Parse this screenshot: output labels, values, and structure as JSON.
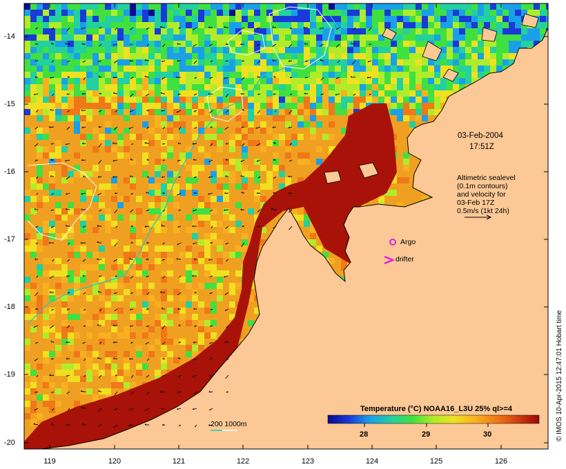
{
  "title_stamp": {
    "date": "03-Feb-2004",
    "time": "17:51Z"
  },
  "altimetry_note": {
    "line1": "Altimetric sealevel",
    "line2": "(0.1m contours)",
    "line3": "and velocity for",
    "line4": "03-Feb 17Z",
    "line5": "0.5m/s (1kt 24h)"
  },
  "legend": {
    "argo": "Argo",
    "drifter": "drifter",
    "bathymetry": "200  1000m",
    "colorbar_title": "Temperature (°C) NOAA16_L3U 25% ql>=4",
    "colorbar_ticks": [
      "28",
      "29",
      "30"
    ]
  },
  "axes": {
    "latitudes": [
      "-14",
      "-15",
      "-16",
      "-17",
      "-18",
      "-19",
      "-20"
    ],
    "longitudes": [
      "119",
      "120",
      "121",
      "122",
      "123",
      "124",
      "125",
      "126"
    ]
  },
  "credit": "© IMOS 10-Apr-2015 12:47:01 Hobart time",
  "colors": {
    "land": "#fbc896",
    "bathy_200": "#22c5c5",
    "bathy_1000": "#ffffff",
    "argo": "#e020e0",
    "drifter": "#e020e0",
    "temp_scale": [
      "#0a0a8c",
      "#1a3ad8",
      "#1aa0e8",
      "#22d0a0",
      "#40e040",
      "#b0ec2a",
      "#f0e020",
      "#f8b020",
      "#f07818",
      "#d03c10",
      "#980808"
    ]
  }
}
